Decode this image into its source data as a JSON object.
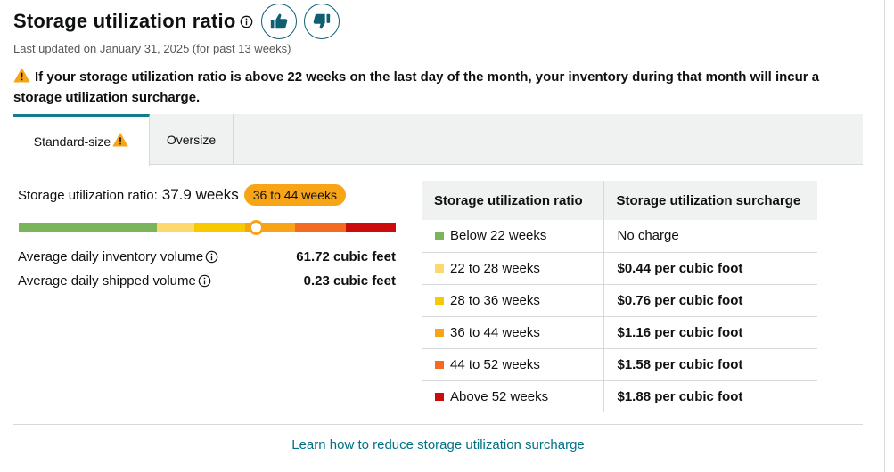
{
  "header": {
    "title": "Storage utilization ratio",
    "thumbs_up_icon": "thumbs-up-icon",
    "thumbs_down_icon": "thumbs-down-icon"
  },
  "updated_text": "Last updated on January 31, 2025 (for past 13 weeks)",
  "warning_text": "If your storage utilization ratio is above 22 weeks on the last day of the month, your inventory during that month will incur a storage utilization surcharge.",
  "tabs": [
    {
      "label": "Standard-size",
      "active": true,
      "warning": true
    },
    {
      "label": "Oversize",
      "active": false,
      "warning": false
    }
  ],
  "ratio": {
    "label": "Storage utilization ratio:",
    "value": "37.9 weeks",
    "badge": "36 to 44 weeks",
    "position_fraction": 0.63
  },
  "bar_segments": [
    {
      "color": "#7ab55c",
      "weight": 22
    },
    {
      "color": "#fdd86e",
      "weight": 6
    },
    {
      "color": "#f7ca00",
      "weight": 8
    },
    {
      "color": "#f7a517",
      "weight": 8
    },
    {
      "color": "#f26b21",
      "weight": 8
    },
    {
      "color": "#cc0c0c",
      "weight": 8
    }
  ],
  "metrics": [
    {
      "label": "Average daily inventory volume",
      "value": "61.72 cubic feet"
    },
    {
      "label": "Average daily shipped volume",
      "value": "0.23 cubic feet"
    }
  ],
  "table": {
    "headers": [
      "Storage utilization ratio",
      "Storage utilization surcharge"
    ],
    "rows": [
      {
        "range": "Below 22 weeks",
        "surcharge": "No charge",
        "color": "#7ab55c",
        "bold": false
      },
      {
        "range": "22 to 28 weeks",
        "surcharge": "$0.44 per cubic foot",
        "color": "#fdd86e",
        "bold": true
      },
      {
        "range": "28 to 36 weeks",
        "surcharge": "$0.76 per cubic foot",
        "color": "#f7ca00",
        "bold": true
      },
      {
        "range": "36 to 44 weeks",
        "surcharge": "$1.16 per cubic foot",
        "color": "#f7a517",
        "bold": true
      },
      {
        "range": "44 to 52 weeks",
        "surcharge": "$1.58 per cubic foot",
        "color": "#f26b21",
        "bold": true
      },
      {
        "range": "Above 52 weeks",
        "surcharge": "$1.88 per cubic foot",
        "color": "#cc0c0c",
        "bold": true
      }
    ]
  },
  "link_text": "Learn how to reduce storage utilization surcharge",
  "colors": {
    "accent": "#127e8c",
    "link": "#007185",
    "badge": "#f7a517",
    "warning_icon": "#f7a517"
  }
}
